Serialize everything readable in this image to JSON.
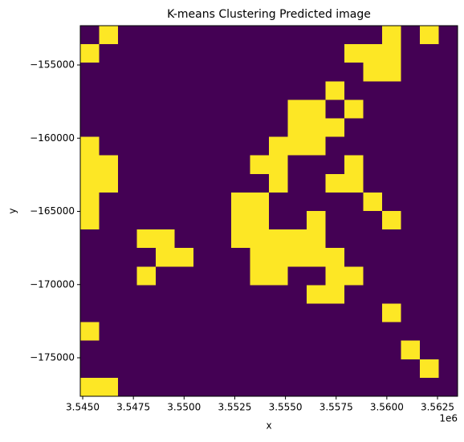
{
  "chart_data": {
    "type": "image",
    "title": "K-means Clustering Predicted image",
    "xlabel": "x",
    "ylabel": "y",
    "x_offset_label": "1e6",
    "colors": [
      "#440154",
      "#fde725"
    ],
    "xlim": [
      3544880,
      3563490
    ],
    "ylim": [
      -177630,
      -152315
    ],
    "xticks": [
      {
        "value": 3545000,
        "label": "3.5450"
      },
      {
        "value": 3547500,
        "label": "3.5475"
      },
      {
        "value": 3550000,
        "label": "3.5500"
      },
      {
        "value": 3552500,
        "label": "3.5525"
      },
      {
        "value": 3555000,
        "label": "3.5550"
      },
      {
        "value": 3557500,
        "label": "3.5575"
      },
      {
        "value": 3560000,
        "label": "3.5600"
      },
      {
        "value": 3562500,
        "label": "3.5625"
      }
    ],
    "yticks": [
      {
        "value": -155000,
        "label": "−155000"
      },
      {
        "value": -160000,
        "label": "−160000"
      },
      {
        "value": -165000,
        "label": "−165000"
      },
      {
        "value": -170000,
        "label": "−170000"
      },
      {
        "value": -175000,
        "label": "−175000"
      }
    ],
    "values": [
      [
        0,
        1,
        0,
        0,
        0,
        0,
        0,
        0,
        0,
        0,
        0,
        0,
        0,
        0,
        0,
        0,
        1,
        0,
        1,
        0
      ],
      [
        1,
        0,
        0,
        0,
        0,
        0,
        0,
        0,
        0,
        0,
        0,
        0,
        0,
        0,
        1,
        1,
        1,
        0,
        0,
        0
      ],
      [
        0,
        0,
        0,
        0,
        0,
        0,
        0,
        0,
        0,
        0,
        0,
        0,
        0,
        0,
        0,
        1,
        1,
        0,
        0,
        0
      ],
      [
        0,
        0,
        0,
        0,
        0,
        0,
        0,
        0,
        0,
        0,
        0,
        0,
        0,
        1,
        0,
        0,
        0,
        0,
        0,
        0
      ],
      [
        0,
        0,
        0,
        0,
        0,
        0,
        0,
        0,
        0,
        0,
        0,
        1,
        1,
        0,
        1,
        0,
        0,
        0,
        0,
        0
      ],
      [
        0,
        0,
        0,
        0,
        0,
        0,
        0,
        0,
        0,
        0,
        0,
        1,
        1,
        1,
        0,
        0,
        0,
        0,
        0,
        0
      ],
      [
        1,
        0,
        0,
        0,
        0,
        0,
        0,
        0,
        0,
        0,
        1,
        1,
        1,
        0,
        0,
        0,
        0,
        0,
        0,
        0
      ],
      [
        1,
        1,
        0,
        0,
        0,
        0,
        0,
        0,
        0,
        1,
        1,
        0,
        0,
        0,
        1,
        0,
        0,
        0,
        0,
        0
      ],
      [
        1,
        1,
        0,
        0,
        0,
        0,
        0,
        0,
        0,
        0,
        1,
        0,
        0,
        1,
        1,
        0,
        0,
        0,
        0,
        0
      ],
      [
        1,
        0,
        0,
        0,
        0,
        0,
        0,
        0,
        1,
        1,
        0,
        0,
        0,
        0,
        0,
        1,
        0,
        0,
        0,
        0
      ],
      [
        1,
        0,
        0,
        0,
        0,
        0,
        0,
        0,
        1,
        1,
        0,
        0,
        1,
        0,
        0,
        0,
        1,
        0,
        0,
        0
      ],
      [
        0,
        0,
        0,
        1,
        1,
        0,
        0,
        0,
        1,
        1,
        1,
        1,
        1,
        0,
        0,
        0,
        0,
        0,
        0,
        0
      ],
      [
        0,
        0,
        0,
        0,
        1,
        1,
        0,
        0,
        0,
        1,
        1,
        1,
        1,
        1,
        0,
        0,
        0,
        0,
        0,
        0
      ],
      [
        0,
        0,
        0,
        1,
        0,
        0,
        0,
        0,
        0,
        1,
        1,
        0,
        0,
        1,
        1,
        0,
        0,
        0,
        0,
        0
      ],
      [
        0,
        0,
        0,
        0,
        0,
        0,
        0,
        0,
        0,
        0,
        0,
        0,
        1,
        1,
        0,
        0,
        0,
        0,
        0,
        0
      ],
      [
        0,
        0,
        0,
        0,
        0,
        0,
        0,
        0,
        0,
        0,
        0,
        0,
        0,
        0,
        0,
        0,
        1,
        0,
        0,
        0
      ],
      [
        1,
        0,
        0,
        0,
        0,
        0,
        0,
        0,
        0,
        0,
        0,
        0,
        0,
        0,
        0,
        0,
        0,
        0,
        0,
        0
      ],
      [
        0,
        0,
        0,
        0,
        0,
        0,
        0,
        0,
        0,
        0,
        0,
        0,
        0,
        0,
        0,
        0,
        0,
        1,
        0,
        0
      ],
      [
        0,
        0,
        0,
        0,
        0,
        0,
        0,
        0,
        0,
        0,
        0,
        0,
        0,
        0,
        0,
        0,
        0,
        0,
        1,
        0
      ],
      [
        1,
        1,
        0,
        0,
        0,
        0,
        0,
        0,
        0,
        0,
        0,
        0,
        0,
        0,
        0,
        0,
        0,
        0,
        0,
        0
      ]
    ]
  }
}
